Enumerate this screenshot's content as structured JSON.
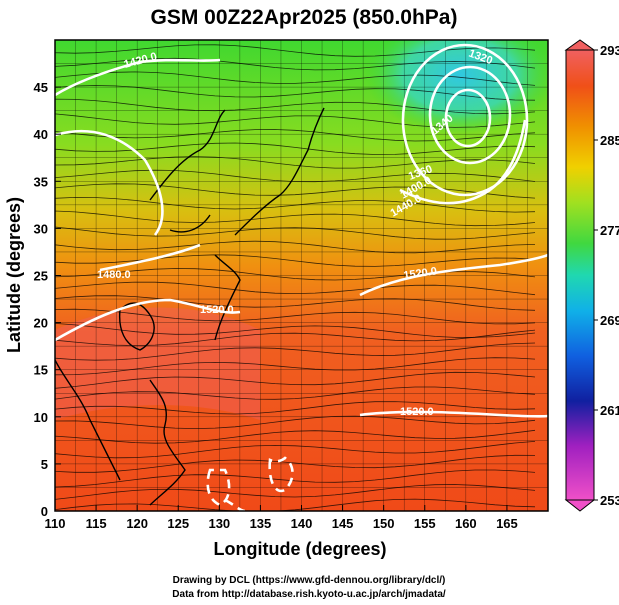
{
  "title": "GSM 00Z22Apr2025 (850.0hPa)",
  "xaxis": {
    "label": "Longitude (degrees)",
    "min": 110,
    "max": 170,
    "ticks": [
      "110",
      "115",
      "120",
      "125",
      "130",
      "135",
      "140",
      "145",
      "150",
      "155",
      "160",
      "165"
    ]
  },
  "yaxis": {
    "label": "Latitude  (degrees)",
    "min": 0,
    "max": 50,
    "ticks": [
      "0",
      "5",
      "10",
      "15",
      "20",
      "25",
      "30",
      "35",
      "40",
      "45"
    ]
  },
  "colorbar": {
    "min": 253,
    "max": 293,
    "tick_labels": [
      "293",
      "285",
      "277",
      "269",
      "261",
      "253"
    ],
    "colors": [
      "#f050c8",
      "#a020c0",
      "#1020a0",
      "#1060e0",
      "#10b0e8",
      "#20d8b0",
      "#40d840",
      "#a0e020",
      "#f0d000",
      "#f09000",
      "#f05018",
      "#f06060"
    ]
  },
  "contour_labels": [
    "1420.0",
    "1480.0",
    "1520.0",
    "1520.0",
    "1520.0",
    "1400.0",
    "1440.0",
    "1320",
    "1360",
    "1340"
  ],
  "credits": {
    "line1": "Drawing by DCL (https://www.gfd-dennou.org/library/dcl/)",
    "line2": "Data from http://database.rish.kyoto-u.ac.jp/arch/jmadata/"
  }
}
